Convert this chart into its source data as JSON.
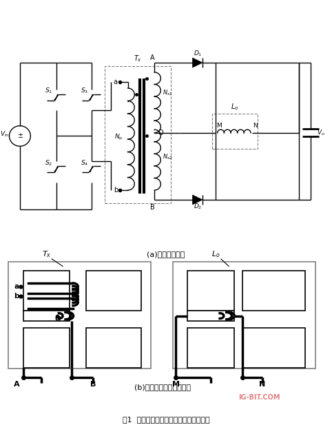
{
  "title": "图1  全波整流电路及其分立磁件实现方式",
  "subtitle_a": "(a)全波整流电路",
  "subtitle_b": "(b)分立磁件电连接示意图",
  "bg_color": "#ffffff"
}
